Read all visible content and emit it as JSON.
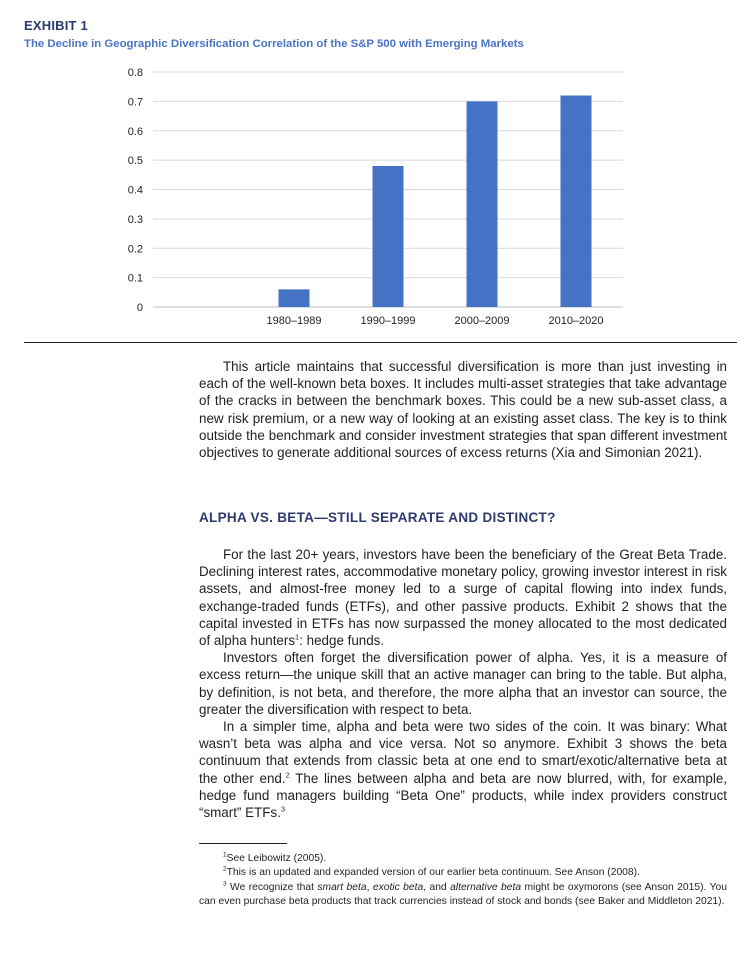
{
  "exhibit": {
    "label": "EXHIBIT 1",
    "title": "The Decline in Geographic Diversification Correlation of the S&P 500 with Emerging Markets"
  },
  "chart_data": {
    "type": "bar",
    "categories": [
      "",
      "1980–1989",
      "1990–1999",
      "2000–2009",
      "2010–2020"
    ],
    "values": [
      null,
      0.06,
      0.48,
      0.7,
      0.72
    ],
    "ylim": [
      0,
      0.8
    ],
    "yticks": [
      0,
      0.1,
      0.2,
      0.3,
      0.4,
      0.5,
      0.6,
      0.7,
      0.8
    ],
    "ytick_labels": [
      "0",
      "0.1",
      "0.2",
      "0.3",
      "0.4",
      "0.5",
      "0.6",
      "0.7",
      "0.8"
    ],
    "grid": true,
    "bar_color": "#4472c4"
  },
  "intro_paragraph": "This article maintains that successful diversification is more than just investing in each of the well-known beta boxes. It includes multi-asset strategies that take advantage of the cracks in between the benchmark boxes. This could be a new sub-asset class, a new risk premium, or a new way of looking at an existing asset class. The key is to think outside the benchmark and consider investment strategies that span different investment objectives to generate additional sources of excess returns (Xia and Simonian 2021).",
  "section_heading": "ALPHA VS. BETA—STILL SEPARATE AND DISTINCT?",
  "paragraphs": {
    "p1_text": "For the last 20+ years, investors have been the beneficiary of the Great Beta Trade. Declining interest rates, accommodative monetary policy, growing investor interest in risk assets, and almost-free money led to a surge of capital flowing into index funds, exchange-traded funds (ETFs), and other passive products. Exhibit 2 shows that the capital invested in ETFs has now surpassed the money allocated to the most dedicated of alpha hunters",
    "p1_sup": "1",
    "p1_tail": ": hedge funds.",
    "p2_text": "Investors often forget the diversification power of alpha. Yes, it is a measure of excess return—the unique skill that an active manager can bring to the table. But alpha, by definition, is not beta, and therefore, the more alpha that an investor can source, the greater the diversification with respect to beta.",
    "p3_text": "In a simpler time, alpha and beta were two sides of the coin. It was binary: What wasn’t beta was alpha and vice versa. Not so anymore. Exhibit 3 shows the beta continuum that extends from classic beta at one end to smart/exotic/alternative beta at the other end.",
    "p3_sup1": "2",
    "p3_text2": " The lines between alpha and beta are now blurred, with, for example, hedge fund managers building “Beta One” products, while index providers construct “smart” ETFs.",
    "p3_sup2": "3"
  },
  "footnotes": {
    "fn1_mark": "1",
    "fn1_text": "See Leibowitz (2005).",
    "fn2_mark": "2",
    "fn2_text": "This is an updated and expanded version of our earlier beta continuum. See Anson (2008).",
    "fn3_mark": "3",
    "fn3_a": " We recognize that ",
    "fn3_i1": "smart beta",
    "fn3_b": ", ",
    "fn3_i2": "exotic beta",
    "fn3_c": ", and ",
    "fn3_i3": "alternative beta",
    "fn3_d": " might be oxymorons (see Anson 2015). You can even purchase beta products that track currencies instead of stock and bonds (see Baker and Middleton 2021)."
  }
}
